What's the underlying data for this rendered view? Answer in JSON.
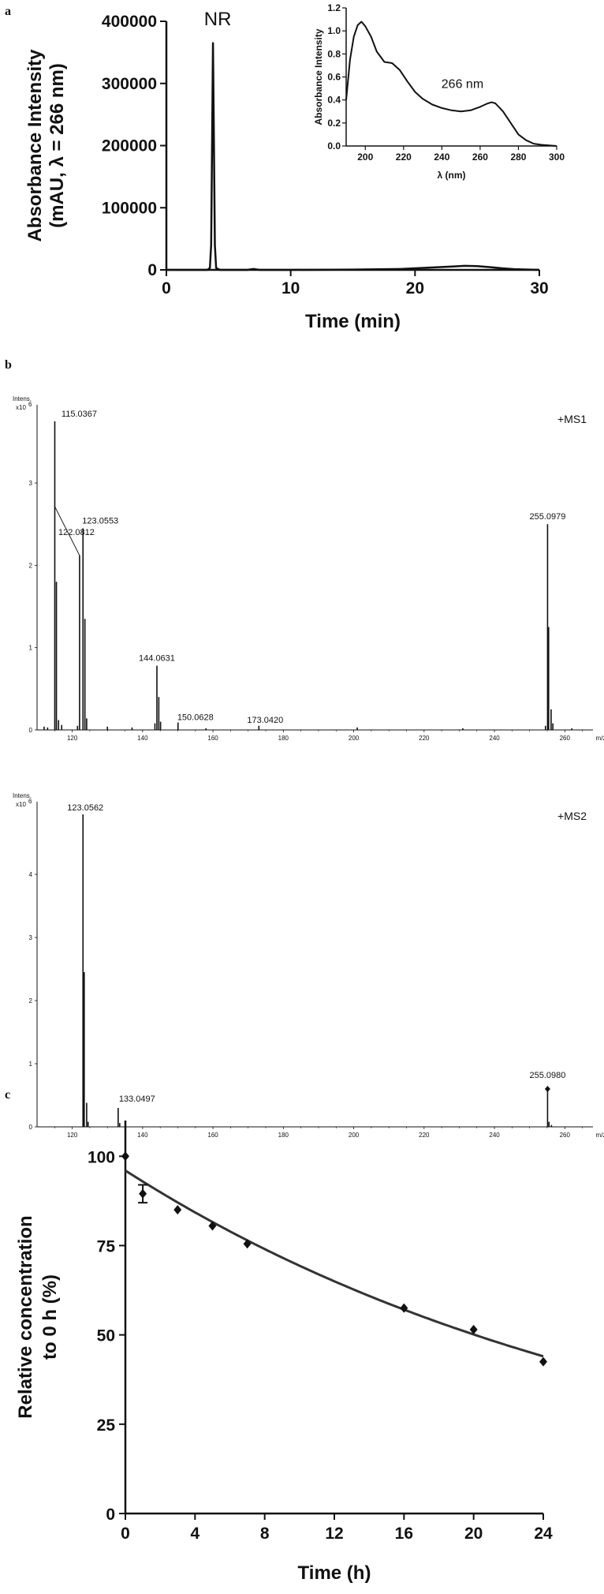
{
  "panels": {
    "a": "a",
    "b": "b",
    "c": "c"
  },
  "chart_data": [
    {
      "id": "chromatogram",
      "type": "line",
      "title": "",
      "xlabel": "Time (min)",
      "ylabel_line1": "Absorbance Intensity",
      "ylabel_line2": "(mAU, λ = 266 nm)",
      "xlim": [
        0,
        30
      ],
      "ylim": [
        0,
        400000
      ],
      "xticks": [
        0,
        10,
        20,
        30
      ],
      "yticks": [
        0,
        100000,
        200000,
        300000,
        400000
      ],
      "peak_label": "NR",
      "series": [
        {
          "x": [
            0,
            3.3,
            3.5,
            3.6,
            3.7,
            3.75,
            3.8,
            3.9,
            4.0,
            4.3,
            6.5,
            7.0,
            7.5,
            10,
            15,
            19,
            21,
            23,
            24,
            25,
            26,
            27,
            28,
            30
          ],
          "y": [
            0,
            0,
            3000,
            40000,
            250000,
            365000,
            260000,
            40000,
            3000,
            0,
            0,
            1500,
            0,
            0,
            500,
            1500,
            3500,
            5500,
            6500,
            6000,
            4500,
            2500,
            1200,
            0
          ]
        }
      ]
    },
    {
      "id": "uv-inset",
      "type": "line",
      "title": "",
      "xlabel": "λ (nm)",
      "ylabel": "Absorbance Intensity",
      "xlim": [
        190,
        300
      ],
      "ylim": [
        0,
        1.2
      ],
      "xticks": [
        200,
        220,
        240,
        260,
        280,
        300
      ],
      "yticks": [
        0.0,
        0.2,
        0.4,
        0.6,
        0.8,
        1.0,
        1.2
      ],
      "annotation": "266 nm",
      "series": [
        {
          "x": [
            190,
            192,
            194,
            196,
            198,
            200,
            203,
            206,
            210,
            214,
            218,
            222,
            226,
            230,
            235,
            240,
            245,
            250,
            255,
            260,
            264,
            266,
            268,
            272,
            276,
            280,
            284,
            288,
            292,
            296,
            300
          ],
          "y": [
            0.4,
            0.75,
            0.95,
            1.05,
            1.08,
            1.04,
            0.95,
            0.82,
            0.73,
            0.72,
            0.66,
            0.56,
            0.47,
            0.41,
            0.36,
            0.33,
            0.31,
            0.3,
            0.31,
            0.34,
            0.37,
            0.38,
            0.37,
            0.3,
            0.2,
            0.1,
            0.05,
            0.02,
            0.01,
            0.005,
            0.0
          ]
        }
      ]
    },
    {
      "id": "ms1",
      "type": "bar",
      "title": "",
      "scan_label": "+MS1",
      "intens_label": "Intens.",
      "scale_label": "x10",
      "scale_exp": "6",
      "unit_label": "m/z",
      "xlim": [
        110,
        268
      ],
      "ylim": [
        0,
        3.95
      ],
      "xticks": [
        120,
        140,
        160,
        180,
        200,
        220,
        240,
        260
      ],
      "yticks": [
        0,
        1,
        2,
        3
      ],
      "peaks": [
        {
          "x": 112,
          "y": 0.04
        },
        {
          "x": 113,
          "y": 0.03
        },
        {
          "x": 115.0367,
          "y": 3.75,
          "label": "115.0367"
        },
        {
          "x": 115.5,
          "y": 1.8
        },
        {
          "x": 116.1,
          "y": 0.12
        },
        {
          "x": 117,
          "y": 0.06
        },
        {
          "x": 121.5,
          "y": 0.05
        },
        {
          "x": 122.0812,
          "y": 2.12,
          "label": "122.0812"
        },
        {
          "x": 123.0553,
          "y": 2.45,
          "label": "123.0553"
        },
        {
          "x": 123.6,
          "y": 1.35
        },
        {
          "x": 124.1,
          "y": 0.14
        },
        {
          "x": 130,
          "y": 0.04
        },
        {
          "x": 137,
          "y": 0.03
        },
        {
          "x": 143.5,
          "y": 0.08
        },
        {
          "x": 144.0631,
          "y": 0.78,
          "label": "144.0631"
        },
        {
          "x": 144.6,
          "y": 0.4
        },
        {
          "x": 145.1,
          "y": 0.1
        },
        {
          "x": 150.0628,
          "y": 0.09,
          "label": "150.0628"
        },
        {
          "x": 158,
          "y": 0.02
        },
        {
          "x": 173.042,
          "y": 0.05,
          "label": "173.0420"
        },
        {
          "x": 201,
          "y": 0.03
        },
        {
          "x": 231,
          "y": 0.02
        },
        {
          "x": 254.5,
          "y": 0.05
        },
        {
          "x": 255.0979,
          "y": 2.5,
          "label": "255.0979"
        },
        {
          "x": 255.4,
          "y": 1.25
        },
        {
          "x": 256.1,
          "y": 0.25
        },
        {
          "x": 256.6,
          "y": 0.08
        },
        {
          "x": 262,
          "y": 0.02
        }
      ]
    },
    {
      "id": "ms2",
      "type": "bar",
      "title": "",
      "scan_label": "+MS2",
      "intens_label": "Intens.",
      "scale_label": "x10",
      "scale_exp": "6",
      "unit_label": "m/z",
      "xlim": [
        110,
        268
      ],
      "ylim": [
        0,
        5.15
      ],
      "xticks": [
        120,
        140,
        160,
        180,
        200,
        220,
        240,
        260
      ],
      "yticks": [
        0,
        1,
        2,
        3,
        4
      ],
      "peaks": [
        {
          "x": 123.0562,
          "y": 4.95,
          "label": "123.0562"
        },
        {
          "x": 123.4,
          "y": 2.45
        },
        {
          "x": 124.1,
          "y": 0.38
        },
        {
          "x": 124.5,
          "y": 0.08
        },
        {
          "x": 133.0497,
          "y": 0.3,
          "label": "133.0497"
        },
        {
          "x": 133.5,
          "y": 0.06
        },
        {
          "x": 255.098,
          "y": 0.6,
          "label": "255.0980",
          "marker": "diamond"
        },
        {
          "x": 255.5,
          "y": 0.08
        },
        {
          "x": 256.2,
          "y": 0.03
        }
      ]
    },
    {
      "id": "stability",
      "type": "scatter",
      "title": "",
      "xlabel": "Time (h)",
      "ylabel_line1": "Relative concentration",
      "ylabel_line2": "to 0 h (%)",
      "xlim": [
        0,
        24
      ],
      "ylim": [
        0,
        110
      ],
      "xticks": [
        0,
        4,
        8,
        12,
        16,
        20,
        24
      ],
      "yticks": [
        0,
        25,
        50,
        75,
        100
      ],
      "points": [
        {
          "x": 0,
          "y": 100
        },
        {
          "x": 1,
          "y": 89.5,
          "err": 2.5
        },
        {
          "x": 3,
          "y": 85
        },
        {
          "x": 5,
          "y": 80.5
        },
        {
          "x": 7,
          "y": 75.5
        },
        {
          "x": 16,
          "y": 57.5
        },
        {
          "x": 20,
          "y": 51.5
        },
        {
          "x": 24,
          "y": 42.5
        }
      ],
      "fit": {
        "type": "exponential",
        "a": 96,
        "k": 0.0325
      }
    }
  ]
}
